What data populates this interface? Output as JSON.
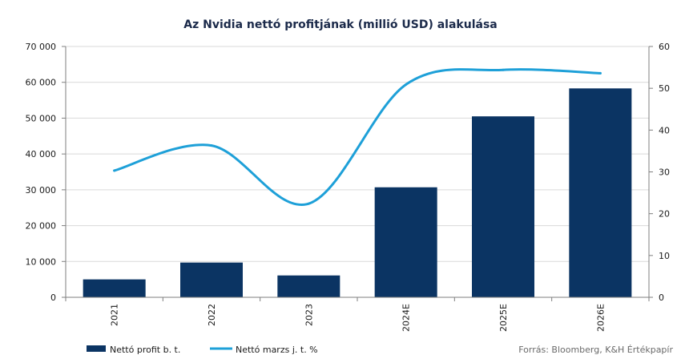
{
  "chart_data": {
    "type": "bar+line",
    "title": "Az Nvidia nettó profitjának (millió USD) alakulása",
    "categories": [
      "2021",
      "2022",
      "2023",
      "2024E",
      "2025E",
      "2026E"
    ],
    "series": [
      {
        "name": "Nettó profit b. t.",
        "type": "bar",
        "axis": "left",
        "color": "#0b3463",
        "values": [
          5000,
          9700,
          6100,
          30700,
          50500,
          58300
        ]
      },
      {
        "name": "Nettó marzs j. t. %",
        "type": "line",
        "axis": "right",
        "color": "#1ea0d8",
        "values": [
          30.3,
          36.3,
          22.4,
          50.9,
          54.4,
          53.6
        ]
      }
    ],
    "y_left": {
      "min": 0,
      "max": 70000,
      "step": 10000,
      "tick_labels": [
        "0",
        "10 000",
        "20 000",
        "30 000",
        "40 000",
        "50 000",
        "60 000",
        "70 000"
      ]
    },
    "y_right": {
      "min": 0,
      "max": 60,
      "step": 10,
      "tick_labels": [
        "0",
        "10",
        "20",
        "30",
        "40",
        "50",
        "60"
      ]
    },
    "grid": true,
    "legend_position": "bottom-left",
    "source": "Forrás: Bloomberg, K&H Értékpapír"
  }
}
